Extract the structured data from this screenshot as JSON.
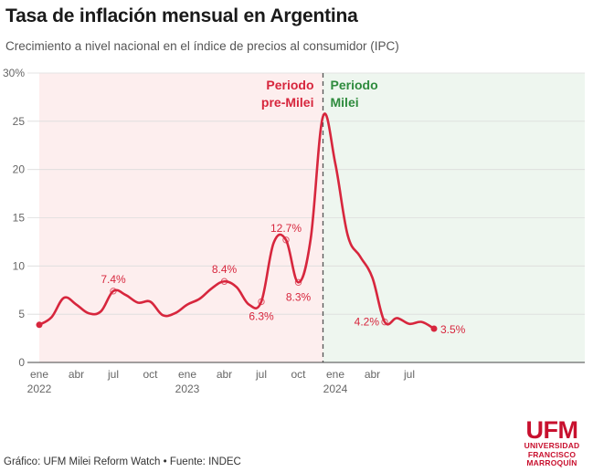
{
  "header": {
    "title": "Tasa de inflación mensual en Argentina",
    "subtitle": "Crecimiento a nivel nacional en el índice de precios al consumidor (IPC)"
  },
  "footer": {
    "source": "Gráfico: UFM Milei Reform Watch • Fuente: INDEC"
  },
  "logo": {
    "mark": "UFM",
    "line1": "UNIVERSIDAD",
    "line2": "FRANCISCO",
    "line3": "MARROQUÍN"
  },
  "chart_data": {
    "type": "line",
    "title": "Tasa de inflación mensual en Argentina",
    "subtitle": "Crecimiento a nivel nacional en el índice de precios al consumidor (IPC)",
    "xlabel": "",
    "ylabel": "",
    "ylim": [
      0,
      30
    ],
    "yticks": [
      0,
      5,
      10,
      15,
      20,
      25,
      30
    ],
    "ytick_labels": [
      "0",
      "5",
      "10",
      "15",
      "20",
      "25",
      "30%"
    ],
    "xticks": [
      {
        "month": "2022-01",
        "label": "ene",
        "year": "2022"
      },
      {
        "month": "2022-04",
        "label": "abr",
        "year": ""
      },
      {
        "month": "2022-07",
        "label": "jul",
        "year": ""
      },
      {
        "month": "2022-10",
        "label": "oct",
        "year": ""
      },
      {
        "month": "2023-01",
        "label": "ene",
        "year": "2023"
      },
      {
        "month": "2023-04",
        "label": "abr",
        "year": ""
      },
      {
        "month": "2023-07",
        "label": "jul",
        "year": ""
      },
      {
        "month": "2023-10",
        "label": "oct",
        "year": ""
      },
      {
        "month": "2024-01",
        "label": "ene",
        "year": "2024"
      },
      {
        "month": "2024-04",
        "label": "abr",
        "year": ""
      },
      {
        "month": "2024-07",
        "label": "jul",
        "year": ""
      }
    ],
    "grid": true,
    "colors": {
      "line": "#d7263d",
      "pre_milei_bg": "#fdeeee",
      "milei_bg": "#eef6ef",
      "pre_milei_text": "#d7263d",
      "milei_text": "#2e8b3d",
      "divider": "#555555"
    },
    "periods": [
      {
        "name": "Periodo pre-Milei",
        "line1": "Periodo",
        "line2": "pre-Milei",
        "from": "2022-01",
        "to": "2023-12"
      },
      {
        "name": "Periodo Milei",
        "line1": "Periodo",
        "line2": "Milei",
        "from": "2023-12",
        "to": "2024-09"
      }
    ],
    "series": [
      {
        "values": [
          {
            "x": "2022-01",
            "y": 3.9
          },
          {
            "x": "2022-02",
            "y": 4.7
          },
          {
            "x": "2022-03",
            "y": 6.7
          },
          {
            "x": "2022-04",
            "y": 6.0
          },
          {
            "x": "2022-05",
            "y": 5.1
          },
          {
            "x": "2022-06",
            "y": 5.3
          },
          {
            "x": "2022-07",
            "y": 7.4
          },
          {
            "x": "2022-08",
            "y": 7.0
          },
          {
            "x": "2022-09",
            "y": 6.2
          },
          {
            "x": "2022-10",
            "y": 6.3
          },
          {
            "x": "2022-11",
            "y": 4.9
          },
          {
            "x": "2022-12",
            "y": 5.1
          },
          {
            "x": "2023-01",
            "y": 6.0
          },
          {
            "x": "2023-02",
            "y": 6.6
          },
          {
            "x": "2023-03",
            "y": 7.7
          },
          {
            "x": "2023-04",
            "y": 8.4
          },
          {
            "x": "2023-05",
            "y": 7.8
          },
          {
            "x": "2023-06",
            "y": 6.0
          },
          {
            "x": "2023-07",
            "y": 6.3
          },
          {
            "x": "2023-08",
            "y": 12.4
          },
          {
            "x": "2023-09",
            "y": 12.7
          },
          {
            "x": "2023-10",
            "y": 8.3
          },
          {
            "x": "2023-11",
            "y": 12.8
          },
          {
            "x": "2023-12",
            "y": 25.5
          },
          {
            "x": "2024-01",
            "y": 20.6
          },
          {
            "x": "2024-02",
            "y": 13.2
          },
          {
            "x": "2024-03",
            "y": 11.0
          },
          {
            "x": "2024-04",
            "y": 8.8
          },
          {
            "x": "2024-05",
            "y": 4.2
          },
          {
            "x": "2024-06",
            "y": 4.6
          },
          {
            "x": "2024-07",
            "y": 4.0
          },
          {
            "x": "2024-08",
            "y": 4.2
          },
          {
            "x": "2024-09",
            "y": 3.5
          }
        ]
      }
    ],
    "annotations": [
      {
        "x": "2022-07",
        "y": 7.4,
        "label": "7.4%",
        "pos": "above"
      },
      {
        "x": "2023-04",
        "y": 8.4,
        "label": "8.4%",
        "pos": "above"
      },
      {
        "x": "2023-07",
        "y": 6.3,
        "label": "6.3%",
        "pos": "below"
      },
      {
        "x": "2023-09",
        "y": 12.7,
        "label": "12.7%",
        "pos": "above"
      },
      {
        "x": "2023-10",
        "y": 8.3,
        "label": "8.3%",
        "pos": "below"
      },
      {
        "x": "2024-05",
        "y": 4.2,
        "label": "4.2%",
        "pos": "left"
      },
      {
        "x": "2024-09",
        "y": 3.5,
        "label": "3.5%",
        "pos": "right"
      }
    ]
  }
}
